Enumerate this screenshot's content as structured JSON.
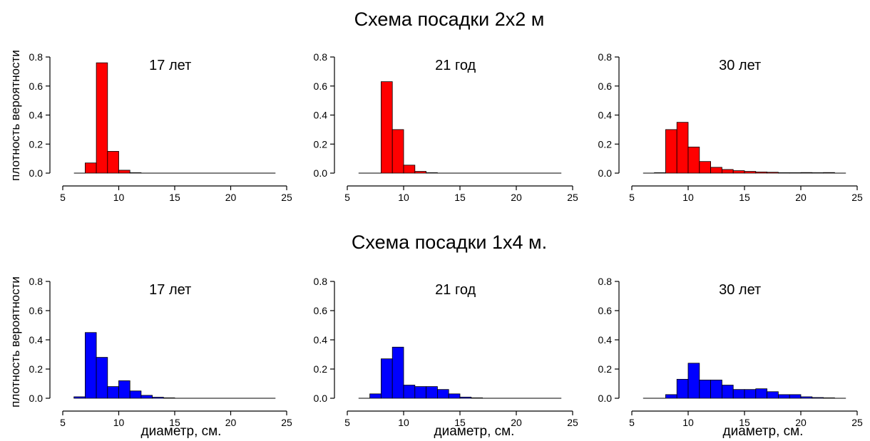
{
  "figure": {
    "rows": [
      {
        "title": "Схема посадки 2х2 м",
        "ylabel": "плотность вероятности",
        "xlabel": ""
      },
      {
        "title": "Схема посадки 1х4 м.",
        "ylabel": "плотность вероятности",
        "xlabel": "диаметр, см."
      }
    ]
  },
  "chart_data": [
    {
      "type": "bar",
      "panel_label": "17 лет",
      "color": "#ff0000",
      "xlim": [
        5,
        25
      ],
      "ylim": [
        0,
        0.8
      ],
      "xticks": [
        5,
        10,
        15,
        20,
        25
      ],
      "yticks": [
        "0.0",
        "0.2",
        "0.4",
        "0.6",
        "0.8"
      ],
      "xlabel": "",
      "ylabel": "плотность вероятности",
      "bins": [
        [
          6,
          7,
          0
        ],
        [
          7,
          8,
          0.07
        ],
        [
          8,
          9,
          0.76
        ],
        [
          9,
          10,
          0.15
        ],
        [
          10,
          11,
          0.02
        ],
        [
          11,
          12,
          0.003
        ],
        [
          12,
          24,
          0
        ]
      ]
    },
    {
      "type": "bar",
      "panel_label": "21 год",
      "color": "#ff0000",
      "xlim": [
        5,
        25
      ],
      "ylim": [
        0,
        0.8
      ],
      "xticks": [
        5,
        10,
        15,
        20,
        25
      ],
      "yticks": [
        "0.0",
        "0.2",
        "0.4",
        "0.6",
        "0.8"
      ],
      "xlabel": "",
      "ylabel": "",
      "bins": [
        [
          6,
          8,
          0
        ],
        [
          8,
          9,
          0.63
        ],
        [
          9,
          10,
          0.3
        ],
        [
          10,
          11,
          0.055
        ],
        [
          11,
          12,
          0.012
        ],
        [
          12,
          13,
          0.003
        ],
        [
          13,
          24,
          0
        ]
      ]
    },
    {
      "type": "bar",
      "panel_label": "30 лет",
      "color": "#ff0000",
      "xlim": [
        5,
        25
      ],
      "ylim": [
        0,
        0.8
      ],
      "xticks": [
        5,
        10,
        15,
        20,
        25
      ],
      "yticks": [
        "0.0",
        "0.2",
        "0.4",
        "0.6",
        "0.8"
      ],
      "xlabel": "",
      "ylabel": "",
      "bins": [
        [
          6,
          7,
          0
        ],
        [
          7,
          8,
          0.003
        ],
        [
          8,
          9,
          0.3
        ],
        [
          9,
          10,
          0.35
        ],
        [
          10,
          11,
          0.18
        ],
        [
          11,
          12,
          0.08
        ],
        [
          12,
          13,
          0.04
        ],
        [
          13,
          14,
          0.025
        ],
        [
          14,
          15,
          0.017
        ],
        [
          15,
          16,
          0.012
        ],
        [
          16,
          17,
          0.008
        ],
        [
          17,
          18,
          0.006
        ],
        [
          18,
          19,
          0.003
        ],
        [
          19,
          20,
          0.001
        ],
        [
          20,
          21,
          0.004
        ],
        [
          21,
          22,
          0.001
        ],
        [
          22,
          23,
          0.004
        ],
        [
          23,
          24,
          0
        ]
      ]
    },
    {
      "type": "bar",
      "panel_label": "17 лет",
      "color": "#0000ff",
      "xlim": [
        5,
        25
      ],
      "ylim": [
        0,
        0.8
      ],
      "xticks": [
        5,
        10,
        15,
        20,
        25
      ],
      "yticks": [
        "0.0",
        "0.2",
        "0.4",
        "0.6",
        "0.8"
      ],
      "xlabel": "диаметр, см.",
      "ylabel": "плотность вероятности",
      "bins": [
        [
          6,
          7,
          0.01
        ],
        [
          7,
          8,
          0.45
        ],
        [
          8,
          9,
          0.28
        ],
        [
          9,
          10,
          0.08
        ],
        [
          10,
          11,
          0.12
        ],
        [
          11,
          12,
          0.05
        ],
        [
          12,
          13,
          0.02
        ],
        [
          13,
          14,
          0.007
        ],
        [
          14,
          15,
          0.003
        ],
        [
          15,
          24,
          0
        ]
      ]
    },
    {
      "type": "bar",
      "panel_label": "21 год",
      "color": "#0000ff",
      "xlim": [
        5,
        25
      ],
      "ylim": [
        0,
        0.8
      ],
      "xticks": [
        5,
        10,
        15,
        20,
        25
      ],
      "yticks": [
        "0.0",
        "0.2",
        "0.4",
        "0.6",
        "0.8"
      ],
      "xlabel": "диаметр, см.",
      "ylabel": "",
      "bins": [
        [
          6,
          7,
          0
        ],
        [
          7,
          8,
          0.03
        ],
        [
          8,
          9,
          0.27
        ],
        [
          9,
          10,
          0.35
        ],
        [
          10,
          11,
          0.09
        ],
        [
          11,
          12,
          0.08
        ],
        [
          12,
          13,
          0.08
        ],
        [
          13,
          14,
          0.06
        ],
        [
          14,
          15,
          0.03
        ],
        [
          15,
          16,
          0.008
        ],
        [
          16,
          17,
          0.003
        ],
        [
          17,
          24,
          0
        ]
      ]
    },
    {
      "type": "bar",
      "panel_label": "30 лет",
      "color": "#0000ff",
      "xlim": [
        5,
        25
      ],
      "ylim": [
        0,
        0.8
      ],
      "xticks": [
        5,
        10,
        15,
        20,
        25
      ],
      "yticks": [
        "0.0",
        "0.2",
        "0.4",
        "0.6",
        "0.8"
      ],
      "xlabel": "диаметр, см.",
      "ylabel": "",
      "bins": [
        [
          6,
          8,
          0
        ],
        [
          8,
          9,
          0.025
        ],
        [
          9,
          10,
          0.13
        ],
        [
          10,
          11,
          0.24
        ],
        [
          11,
          12,
          0.125
        ],
        [
          12,
          13,
          0.125
        ],
        [
          13,
          14,
          0.09
        ],
        [
          14,
          15,
          0.06
        ],
        [
          15,
          16,
          0.06
        ],
        [
          16,
          17,
          0.065
        ],
        [
          17,
          18,
          0.045
        ],
        [
          18,
          19,
          0.025
        ],
        [
          19,
          20,
          0.025
        ],
        [
          20,
          21,
          0.01
        ],
        [
          21,
          22,
          0.005
        ],
        [
          22,
          23,
          0.003
        ],
        [
          23,
          24,
          0
        ]
      ]
    }
  ]
}
